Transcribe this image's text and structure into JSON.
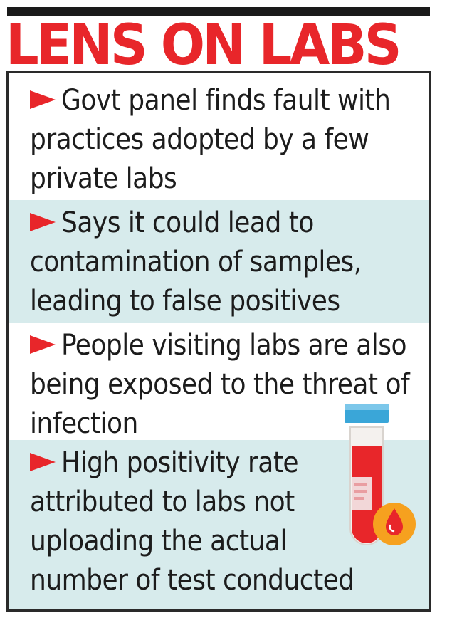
{
  "headline": "LENS ON LABS",
  "colors": {
    "accent_red": "#e8262a",
    "shade_blue": "#d7ebec",
    "tube_cap_blue": "#3aa6d8",
    "drop_circle_orange": "#f6a11f"
  },
  "items": [
    {
      "icon": "arrow-bullet-icon",
      "text": "Govt panel finds fault with practices adopted by a few private labs"
    },
    {
      "icon": "arrow-bullet-icon",
      "text": "Says it could lead to contamination of samples, leading to false positives"
    },
    {
      "icon": "arrow-bullet-icon",
      "text": "People visiting labs are also being exposed to the threat of infection"
    },
    {
      "icon": "arrow-bullet-icon",
      "text": "High positivity rate attributed to labs not uploading the actual number of test conducted"
    }
  ],
  "illustration": {
    "icon": "blood-test-tube-icon"
  }
}
